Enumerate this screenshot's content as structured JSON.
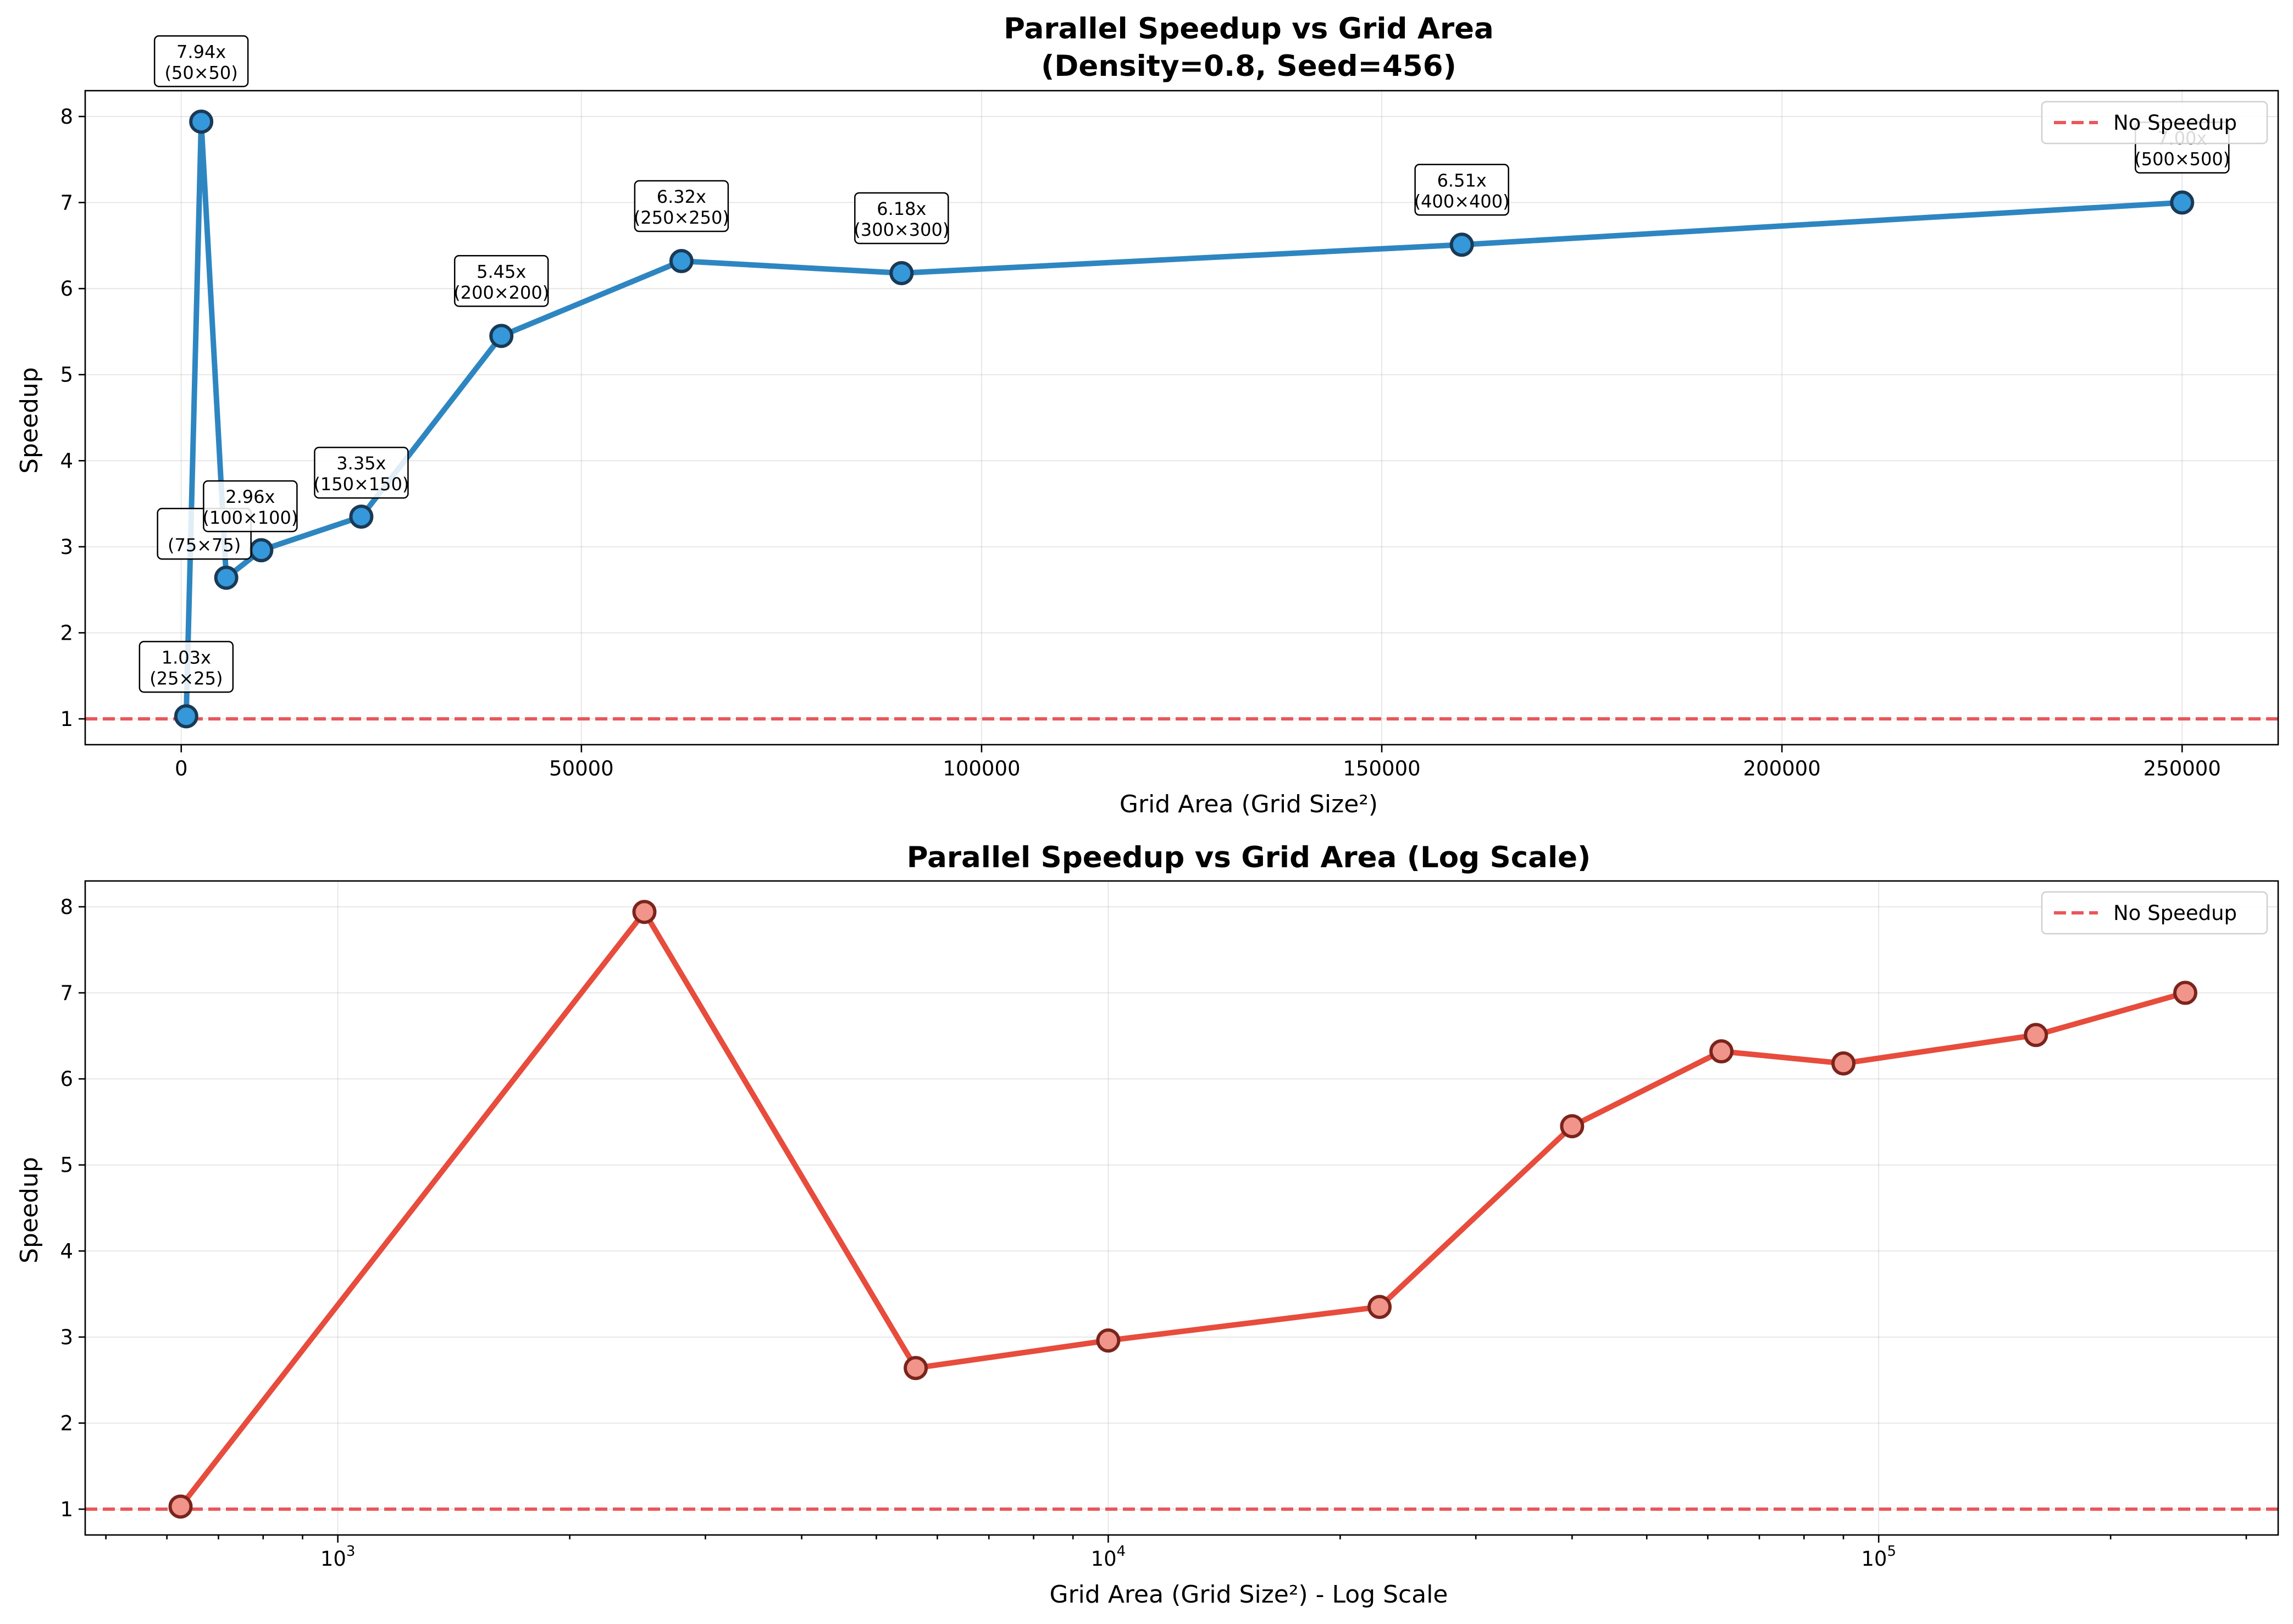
{
  "chart_data": [
    {
      "type": "line",
      "title": "Parallel Speedup vs Grid Area",
      "subtitle": "(Density=0.8, Seed=456)",
      "xlabel": "Grid Area (Grid Size²)",
      "ylabel": "Speedup",
      "xscale": "linear",
      "xlim": [
        -12000,
        262000
      ],
      "ylim": [
        0.7,
        8.3
      ],
      "xticks": [
        0,
        50000,
        100000,
        150000,
        200000,
        250000
      ],
      "xtick_labels": [
        "0",
        "50000",
        "100000",
        "150000",
        "200000",
        "250000"
      ],
      "yticks": [
        1,
        2,
        3,
        4,
        5,
        6,
        7,
        8
      ],
      "grid": true,
      "legend": "top-right",
      "series": [
        {
          "name": "",
          "color": "#2e86c1",
          "marker_fill": "#3498db",
          "marker_edge": "#1a3a55",
          "x": [
            625,
            2500,
            5625,
            10000,
            22500,
            40000,
            62500,
            90000,
            160000,
            250000
          ],
          "y": [
            1.03,
            7.94,
            2.64,
            2.96,
            3.35,
            5.45,
            6.32,
            6.18,
            6.51,
            7.0
          ]
        }
      ],
      "reference_line": {
        "y": 1,
        "label": "No Speedup",
        "color": "#e8474b"
      },
      "annotations": [
        {
          "line1": "1.03x",
          "line2": "(25×25)"
        },
        {
          "line1": "7.94x",
          "line2": "(50×50)"
        },
        {
          "line1": "",
          "line2": "(75×75)"
        },
        {
          "line1": "2.96x",
          "line2": "(100×100)"
        },
        {
          "line1": "3.35x",
          "line2": "(150×150)"
        },
        {
          "line1": "5.45x",
          "line2": "(200×200)"
        },
        {
          "line1": "6.32x",
          "line2": "(250×250)"
        },
        {
          "line1": "6.18x",
          "line2": "(300×300)"
        },
        {
          "line1": "6.51x",
          "line2": "(400×400)"
        },
        {
          "line1": "7.00x",
          "line2": "(500×500)"
        }
      ]
    },
    {
      "type": "line",
      "title": "Parallel Speedup vs Grid Area (Log Scale)",
      "xlabel": "Grid Area (Grid Size²) - Log Scale",
      "ylabel": "Speedup",
      "xscale": "log",
      "xlim": [
        470,
        330000
      ],
      "ylim": [
        0.7,
        8.3
      ],
      "xticks": [
        1000,
        10000,
        100000
      ],
      "xtick_labels": [
        "10",
        "10",
        "10"
      ],
      "xtick_exponents": [
        "3",
        "4",
        "5"
      ],
      "yticks": [
        1,
        2,
        3,
        4,
        5,
        6,
        7,
        8
      ],
      "grid": true,
      "legend": "top-right",
      "series": [
        {
          "name": "",
          "color": "#e74c3c",
          "marker_fill": "#f1948a",
          "marker_edge": "#7b241c",
          "x": [
            625,
            2500,
            5625,
            10000,
            22500,
            40000,
            62500,
            90000,
            160000,
            250000
          ],
          "y": [
            1.03,
            7.94,
            2.64,
            2.96,
            3.35,
            5.45,
            6.32,
            6.18,
            6.51,
            7.0
          ]
        }
      ],
      "reference_line": {
        "y": 1,
        "label": "No Speedup",
        "color": "#e8474b"
      }
    }
  ]
}
